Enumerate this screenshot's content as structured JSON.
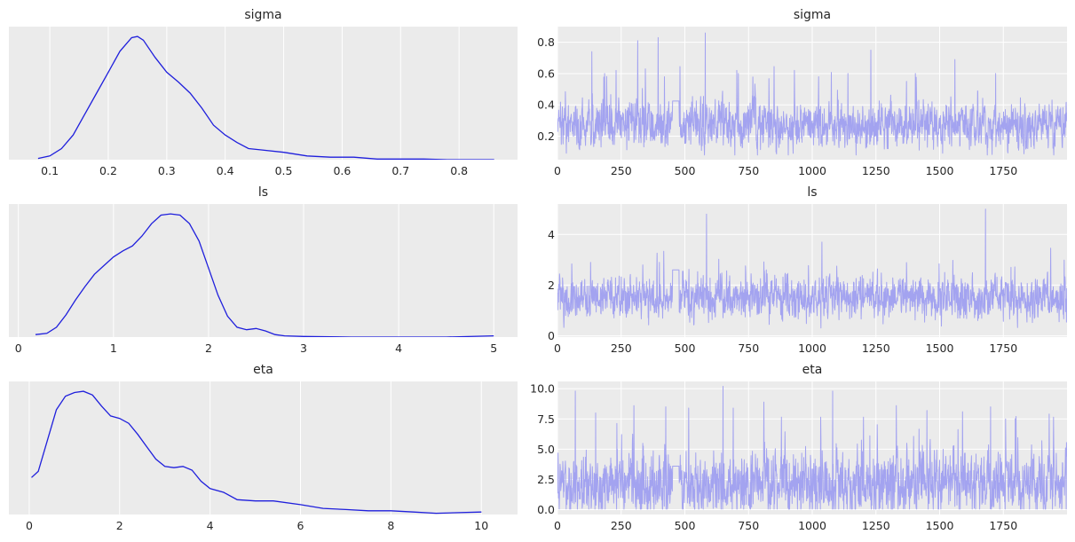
{
  "figure": {
    "background": "#ffffff",
    "panel_background": "#ebebeb",
    "grid_color": "#ffffff",
    "text_color": "#262626",
    "kde_color": "#1f1fdc",
    "trace_color": "#a3a3f0"
  },
  "chart_data": [
    {
      "type": "line",
      "panel": "kde",
      "title": "sigma",
      "xlabel": "",
      "ylabel": "",
      "xlim": [
        0.03,
        0.9
      ],
      "ylim": [
        0,
        1.08
      ],
      "x_ticks": [
        0.1,
        0.2,
        0.3,
        0.4,
        0.5,
        0.6,
        0.7,
        0.8
      ],
      "x_tick_labels": [
        "0.1",
        "0.2",
        "0.3",
        "0.4",
        "0.5",
        "0.6",
        "0.7",
        "0.8"
      ],
      "y_ticks": [],
      "grid": "x",
      "series": [
        {
          "x": [
            0.08,
            0.1,
            0.12,
            0.14,
            0.16,
            0.18,
            0.2,
            0.22,
            0.24,
            0.25,
            0.26,
            0.28,
            0.3,
            0.32,
            0.34,
            0.36,
            0.38,
            0.4,
            0.42,
            0.44,
            0.46,
            0.5,
            0.54,
            0.58,
            0.62,
            0.66,
            0.7,
            0.74,
            0.78,
            0.82,
            0.86
          ],
          "y": [
            0.01,
            0.03,
            0.09,
            0.2,
            0.37,
            0.54,
            0.71,
            0.88,
            0.99,
            1.0,
            0.97,
            0.83,
            0.71,
            0.63,
            0.54,
            0.42,
            0.28,
            0.2,
            0.14,
            0.09,
            0.08,
            0.06,
            0.03,
            0.02,
            0.02,
            0.005,
            0.005,
            0.005,
            0.0,
            0.0,
            0.0
          ]
        }
      ]
    },
    {
      "type": "line",
      "panel": "trace",
      "title": "sigma",
      "xlabel": "",
      "ylabel": "",
      "xlim": [
        0,
        2000
      ],
      "ylim": [
        0.05,
        0.9
      ],
      "x_ticks": [
        0,
        250,
        500,
        750,
        1000,
        1250,
        1500,
        1750
      ],
      "x_tick_labels": [
        "0",
        "250",
        "500",
        "750",
        "1000",
        "1250",
        "1500",
        "1750"
      ],
      "y_ticks": [
        0.2,
        0.4,
        0.6,
        0.8
      ],
      "y_tick_labels": [
        "0.2",
        "0.4",
        "0.6",
        "0.8"
      ],
      "grid": "both",
      "n_samples": 2000,
      "sample_stats": {
        "center": 0.27,
        "spread": 0.08,
        "min": 0.08,
        "max": 0.86
      },
      "spikes": [
        [
          135,
          0.74
        ],
        [
          185,
          0.6
        ],
        [
          230,
          0.62
        ],
        [
          315,
          0.81
        ],
        [
          345,
          0.63
        ],
        [
          395,
          0.83
        ],
        [
          420,
          0.58
        ],
        [
          580,
          0.86
        ],
        [
          710,
          0.6
        ],
        [
          930,
          0.62
        ],
        [
          1025,
          0.58
        ],
        [
          1140,
          0.6
        ],
        [
          1230,
          0.75
        ],
        [
          1370,
          0.55
        ],
        [
          1405,
          0.6
        ],
        [
          1560,
          0.69
        ],
        [
          1720,
          0.6
        ]
      ]
    },
    {
      "type": "line",
      "panel": "kde",
      "title": "ls",
      "xlabel": "",
      "ylabel": "",
      "xlim": [
        -0.1,
        5.25
      ],
      "ylim": [
        0,
        1.08
      ],
      "x_ticks": [
        0,
        1,
        2,
        3,
        4,
        5
      ],
      "x_tick_labels": [
        "0",
        "1",
        "2",
        "3",
        "4",
        "5"
      ],
      "y_ticks": [],
      "grid": "x",
      "series": [
        {
          "x": [
            0.18,
            0.3,
            0.4,
            0.5,
            0.6,
            0.7,
            0.8,
            0.9,
            1.0,
            1.1,
            1.2,
            1.3,
            1.4,
            1.5,
            1.6,
            1.7,
            1.8,
            1.9,
            2.0,
            2.1,
            2.2,
            2.3,
            2.4,
            2.5,
            2.6,
            2.7,
            2.8,
            3.0,
            3.5,
            4.0,
            4.5,
            5.0
          ],
          "y": [
            0.02,
            0.03,
            0.08,
            0.18,
            0.3,
            0.41,
            0.51,
            0.58,
            0.65,
            0.7,
            0.74,
            0.82,
            0.92,
            0.99,
            1.0,
            0.99,
            0.92,
            0.78,
            0.56,
            0.34,
            0.17,
            0.08,
            0.06,
            0.07,
            0.05,
            0.02,
            0.01,
            0.005,
            0.0,
            0.0,
            0.0,
            0.01
          ]
        }
      ]
    },
    {
      "type": "line",
      "panel": "trace",
      "title": "ls",
      "xlabel": "",
      "ylabel": "",
      "xlim": [
        0,
        2000
      ],
      "ylim": [
        -0.05,
        5.2
      ],
      "x_ticks": [
        0,
        250,
        500,
        750,
        1000,
        1250,
        1500,
        1750
      ],
      "x_tick_labels": [
        "0",
        "250",
        "500",
        "750",
        "1000",
        "1250",
        "1500",
        "1750"
      ],
      "y_ticks": [
        0,
        2,
        4
      ],
      "y_tick_labels": [
        "0",
        "2",
        "4"
      ],
      "grid": "both",
      "n_samples": 2000,
      "sample_stats": {
        "center": 1.5,
        "spread": 0.45,
        "min": 0.2,
        "max": 5.0
      },
      "spikes": [
        [
          130,
          2.9
        ],
        [
          400,
          2.9
        ],
        [
          585,
          4.8
        ],
        [
          820,
          2.6
        ],
        [
          1520,
          2.5
        ],
        [
          1680,
          5.0
        ],
        [
          1780,
          2.7
        ]
      ]
    },
    {
      "type": "line",
      "panel": "kde",
      "title": "eta",
      "xlabel": "",
      "ylabel": "",
      "xlim": [
        -0.45,
        10.8
      ],
      "ylim": [
        0,
        1.08
      ],
      "x_ticks": [
        0,
        2,
        4,
        6,
        8,
        10
      ],
      "x_tick_labels": [
        "0",
        "2",
        "4",
        "6",
        "8",
        "10"
      ],
      "y_ticks": [],
      "grid": "x",
      "series": [
        {
          "x": [
            0.05,
            0.2,
            0.4,
            0.6,
            0.8,
            1.0,
            1.2,
            1.4,
            1.6,
            1.8,
            2.0,
            2.2,
            2.4,
            2.6,
            2.8,
            3.0,
            3.2,
            3.4,
            3.6,
            3.8,
            4.0,
            4.3,
            4.6,
            5.0,
            5.4,
            6.0,
            6.5,
            7.0,
            7.5,
            8.0,
            8.5,
            9.0,
            10.0
          ],
          "y": [
            0.3,
            0.35,
            0.6,
            0.85,
            0.96,
            0.99,
            1.0,
            0.97,
            0.88,
            0.8,
            0.78,
            0.74,
            0.65,
            0.55,
            0.45,
            0.39,
            0.38,
            0.39,
            0.36,
            0.27,
            0.21,
            0.18,
            0.12,
            0.11,
            0.11,
            0.08,
            0.05,
            0.04,
            0.03,
            0.03,
            0.02,
            0.01,
            0.02
          ]
        }
      ]
    },
    {
      "type": "line",
      "panel": "trace",
      "title": "eta",
      "xlabel": "",
      "ylabel": "",
      "xlim": [
        0,
        2000
      ],
      "ylim": [
        -0.4,
        10.6
      ],
      "x_ticks": [
        0,
        250,
        500,
        750,
        1000,
        1250,
        1500,
        1750
      ],
      "x_tick_labels": [
        "0",
        "250",
        "500",
        "750",
        "1000",
        "1250",
        "1500",
        "1750"
      ],
      "y_ticks": [
        0.0,
        2.5,
        5.0,
        7.5,
        10.0
      ],
      "y_tick_labels": [
        "0.0",
        "2.5",
        "5.0",
        "7.5",
        "10.0"
      ],
      "grid": "both",
      "n_samples": 2000,
      "sample_stats": {
        "center": 2.1,
        "spread": 1.4,
        "min": 0.05,
        "max": 10.2
      },
      "spikes": [
        [
          70,
          9.8
        ],
        [
          150,
          8.0
        ],
        [
          300,
          8.6
        ],
        [
          425,
          8.5
        ],
        [
          515,
          8.4
        ],
        [
          650,
          10.2
        ],
        [
          690,
          8.4
        ],
        [
          810,
          8.9
        ],
        [
          1080,
          9.8
        ],
        [
          1330,
          8.6
        ],
        [
          1450,
          8.2
        ],
        [
          1590,
          8.1
        ],
        [
          1700,
          8.5
        ],
        [
          1800,
          7.7
        ],
        [
          1930,
          7.9
        ]
      ]
    }
  ]
}
